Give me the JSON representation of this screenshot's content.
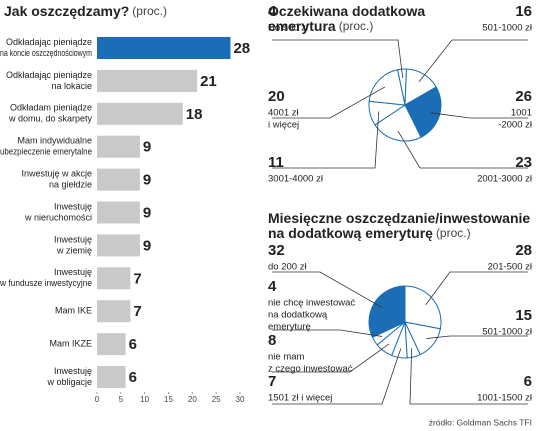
{
  "chart_data": [
    {
      "type": "bar",
      "orientation": "horizontal",
      "title": "Jak oszczędzamy?",
      "subtitle": "(proc.)",
      "categories": [
        [
          "Odkładając pieniądze",
          "na koncie oszczędnościowym"
        ],
        [
          "Odkładając pieniądze",
          "na lokacie"
        ],
        [
          "Odkładam pieniądze",
          "w domu, do skarpety"
        ],
        [
          "Mam indywidualne",
          "ubezpieczenie emerytalne"
        ],
        [
          "Inwestuję w akcje",
          "na giełdzie"
        ],
        [
          "Inwestuję",
          "w nieruchomości"
        ],
        [
          "Inwestuję",
          "w ziemię"
        ],
        [
          "Inwestuję",
          "w fundusze inwestycyjne"
        ],
        [
          "Mam IKE"
        ],
        [
          "Mam IKZE"
        ],
        [
          "Inwestuję",
          "w obligacje"
        ]
      ],
      "values": [
        28,
        21,
        18,
        9,
        9,
        9,
        9,
        7,
        7,
        6,
        6
      ],
      "colors": [
        "#1b6db5",
        "#c9c9c9",
        "#c9c9c9",
        "#c9c9c9",
        "#c9c9c9",
        "#c9c9c9",
        "#c9c9c9",
        "#c9c9c9",
        "#c9c9c9",
        "#c9c9c9",
        "#c9c9c9"
      ],
      "xlim": [
        0,
        30
      ],
      "xticks": [
        0,
        5,
        10,
        15,
        20,
        25,
        30
      ]
    },
    {
      "type": "pie",
      "title": [
        "Oczekiwana dodatkowa",
        "emerytura"
      ],
      "subtitle": "(proc.)",
      "direction": "clockwise",
      "categories": [
        [
          "Do 500 zł"
        ],
        [
          "501-1000 zł"
        ],
        [
          "1001",
          "-2000 zł"
        ],
        [
          "2001-3000 zł"
        ],
        [
          "3001-4000 zł"
        ],
        [
          "4001 zł",
          "i więcej"
        ]
      ],
      "values": [
        4,
        16,
        26,
        23,
        11,
        20
      ],
      "colors": [
        "#ffffff",
        "#ffffff",
        "#1b6db5",
        "#ffffff",
        "#ffffff",
        "#ffffff"
      ]
    },
    {
      "type": "pie",
      "title": [
        "Miesięczne oszczędzanie/inwestowanie",
        "na dodatkową emeryturę"
      ],
      "subtitle": "(proc.)",
      "direction": "counterclockwise",
      "categories": [
        [
          "do 200 zł"
        ],
        [
          "nie chcę inwestować",
          "na dodatkową",
          "emeryturę"
        ],
        [
          "nie mam",
          "z czego inwestować"
        ],
        [
          "1501 zł i więcej"
        ],
        [
          "1001-1500 zł"
        ],
        [
          "501-1000 zł"
        ],
        [
          "201-500 zł"
        ]
      ],
      "values": [
        32,
        4,
        8,
        7,
        6,
        15,
        28
      ],
      "colors": [
        "#1b6db5",
        "#ffffff",
        "#ffffff",
        "#ffffff",
        "#ffffff",
        "#ffffff",
        "#ffffff"
      ]
    }
  ],
  "source": "źródło: Goldman Sachs TFI"
}
